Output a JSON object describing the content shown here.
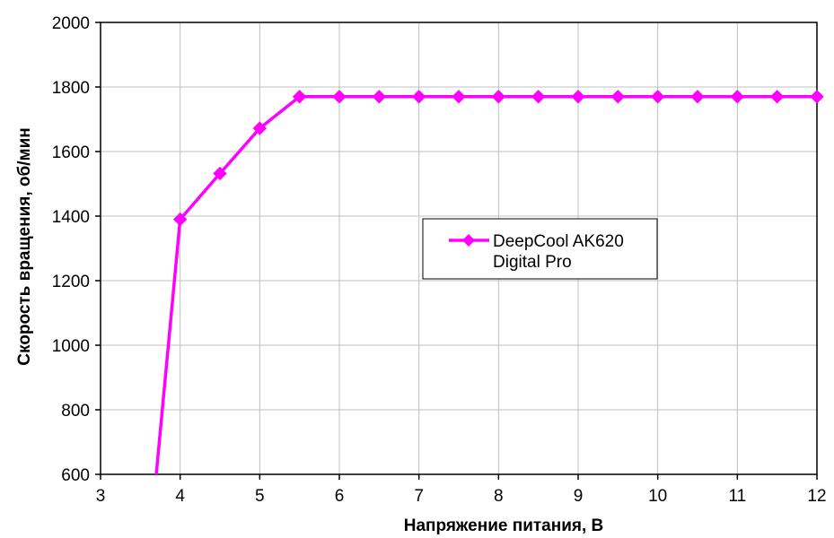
{
  "chart_data": {
    "type": "line",
    "title": "",
    "xlabel": "Напряжение питания, В",
    "ylabel": "Скорость вращения, об/мин",
    "xlim": [
      3,
      12
    ],
    "ylim": [
      600,
      2000
    ],
    "xticks": [
      3,
      4,
      5,
      6,
      7,
      8,
      9,
      10,
      11,
      12
    ],
    "yticks": [
      600,
      800,
      1000,
      1200,
      1400,
      1600,
      1800,
      2000
    ],
    "grid": true,
    "legend_position": "center-right",
    "series": [
      {
        "name": "DeepCool AK620 Digital Pro",
        "legend_lines": [
          "DeepCool AK620",
          "Digital Pro"
        ],
        "color": "#ff00ff",
        "marker": "diamond",
        "x": [
          3.7,
          4.0,
          4.5,
          5.0,
          5.5,
          6.0,
          6.5,
          7.0,
          7.5,
          8.0,
          8.5,
          9.0,
          9.5,
          10.0,
          10.5,
          11.0,
          11.5,
          12.0
        ],
        "y": [
          600,
          1390,
          1532,
          1672,
          1770,
          1770,
          1770,
          1770,
          1770,
          1770,
          1770,
          1770,
          1770,
          1770,
          1770,
          1770,
          1770,
          1770
        ],
        "marker_from_index": 1
      }
    ]
  }
}
